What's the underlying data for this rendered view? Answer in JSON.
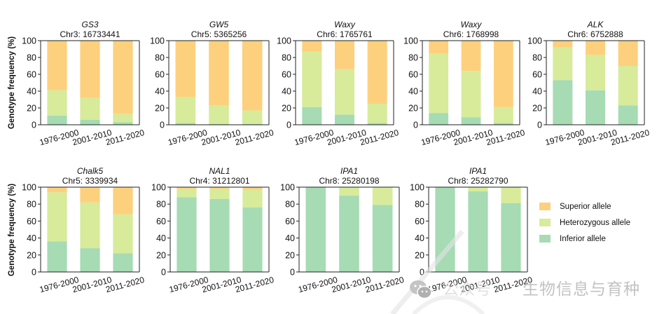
{
  "chart_data": {
    "type": "bar",
    "stacked": true,
    "normalized_percent": true,
    "ylabel": "Genotype frequency (%)",
    "ylim": [
      0,
      100
    ],
    "yticks": [
      0,
      20,
      40,
      60,
      80,
      100
    ],
    "categories": [
      "1976-2000",
      "2001-2010",
      "2011-2020"
    ],
    "grid": false,
    "legend": {
      "placement": "bottom-right",
      "entries": [
        {
          "key": "superior",
          "label": "Superior allele",
          "color": "#fdd07d"
        },
        {
          "key": "heterozygous",
          "label": "Heterozygous allele",
          "color": "#d7eb9a"
        },
        {
          "key": "inferior",
          "label": "Inferior allele",
          "color": "#a6dbb4"
        }
      ]
    },
    "panels": [
      {
        "gene": "GS3",
        "locus": "Chr3: 16733441",
        "series": {
          "inferior": [
            11,
            6,
            3
          ],
          "heterozygous": [
            30,
            26,
            10
          ],
          "superior": [
            59,
            68,
            87
          ]
        }
      },
      {
        "gene": "GW5",
        "locus": "Chr5: 5365256",
        "series": {
          "inferior": [
            2,
            1,
            1
          ],
          "heterozygous": [
            31,
            22,
            16
          ],
          "superior": [
            67,
            77,
            83
          ]
        }
      },
      {
        "gene": "Waxy",
        "locus": "Chr6: 1765761",
        "series": {
          "inferior": [
            21,
            12,
            2
          ],
          "heterozygous": [
            66,
            54,
            23
          ],
          "superior": [
            13,
            34,
            75
          ]
        }
      },
      {
        "gene": "Waxy",
        "locus": "Chr6: 1768998",
        "series": {
          "inferior": [
            14,
            9,
            2
          ],
          "heterozygous": [
            71,
            55,
            19
          ],
          "superior": [
            15,
            36,
            79
          ]
        }
      },
      {
        "gene": "ALK",
        "locus": "Chr6: 6752888",
        "series": {
          "inferior": [
            53,
            41,
            23
          ],
          "heterozygous": [
            39,
            42,
            47
          ],
          "superior": [
            8,
            17,
            30
          ]
        }
      },
      {
        "gene": "Chalk5",
        "locus": "Chr5: 3339934",
        "series": {
          "inferior": [
            36,
            28,
            22
          ],
          "heterozygous": [
            58,
            54,
            46
          ],
          "superior": [
            6,
            18,
            32
          ]
        }
      },
      {
        "gene": "NAL1",
        "locus": "Chr4: 31212801",
        "series": {
          "inferior": [
            88,
            86,
            76
          ],
          "heterozygous": [
            10,
            12,
            21
          ],
          "superior": [
            2,
            2,
            3
          ]
        }
      },
      {
        "gene": "IPA1",
        "locus": "Chr8: 25280198",
        "series": {
          "inferior": [
            100,
            90,
            79
          ],
          "heterozygous": [
            0,
            10,
            21
          ],
          "superior": [
            0,
            0,
            0
          ]
        }
      },
      {
        "gene": "IPA1",
        "locus": "Chr8: 25282790",
        "series": {
          "inferior": [
            100,
            95,
            81
          ],
          "heterozygous": [
            0,
            5,
            19
          ],
          "superior": [
            0,
            0,
            0
          ]
        }
      }
    ]
  },
  "watermark": {
    "prefix": "公众号",
    "text": "生物信息与育种"
  }
}
